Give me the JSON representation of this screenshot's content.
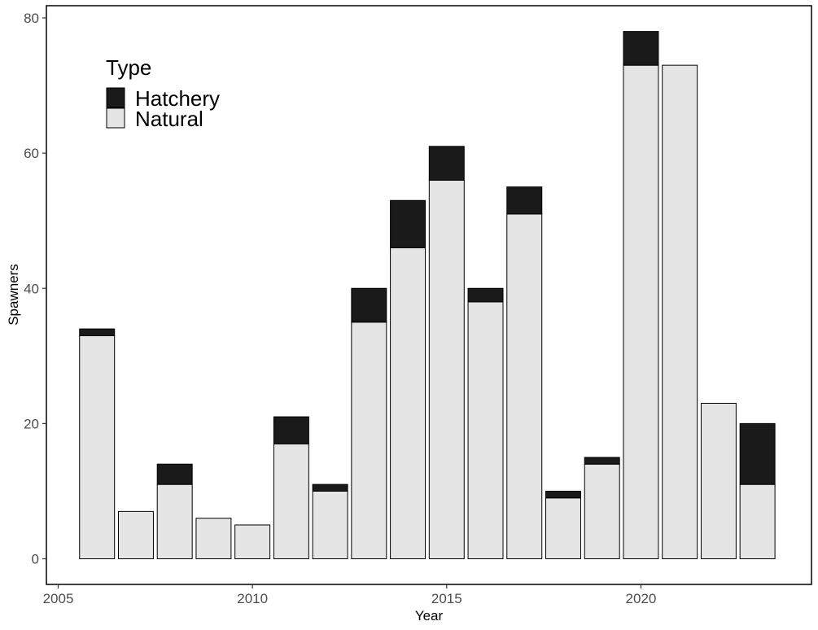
{
  "chart_data": {
    "type": "bar",
    "stacked": true,
    "title": "",
    "xlabel": "Year",
    "ylabel": "Spawners",
    "xlim": [
      2005,
      2023.5
    ],
    "ylim": [
      0,
      80
    ],
    "x_ticks": [
      "2005",
      "2010",
      "2015",
      "2020"
    ],
    "y_ticks": [
      "0",
      "20",
      "40",
      "60",
      "80"
    ],
    "grid": false,
    "legend": {
      "title": "Type",
      "position": "top-left"
    },
    "categories": [
      2006,
      2007,
      2008,
      2009,
      2010,
      2011,
      2012,
      2013,
      2014,
      2015,
      2016,
      2017,
      2018,
      2019,
      2020,
      2021,
      2022,
      2023
    ],
    "series": [
      {
        "name": "Natural",
        "color": "#e5e5e5",
        "values": [
          33,
          7,
          11,
          6,
          5,
          17,
          10,
          35,
          46,
          56,
          38,
          51,
          9,
          14,
          73,
          73,
          23,
          11
        ]
      },
      {
        "name": "Hatchery",
        "color": "#1a1a1a",
        "values": [
          1,
          0,
          3,
          0,
          0,
          4,
          1,
          5,
          7,
          5,
          2,
          4,
          1,
          1,
          5,
          0,
          0,
          9
        ]
      }
    ]
  }
}
